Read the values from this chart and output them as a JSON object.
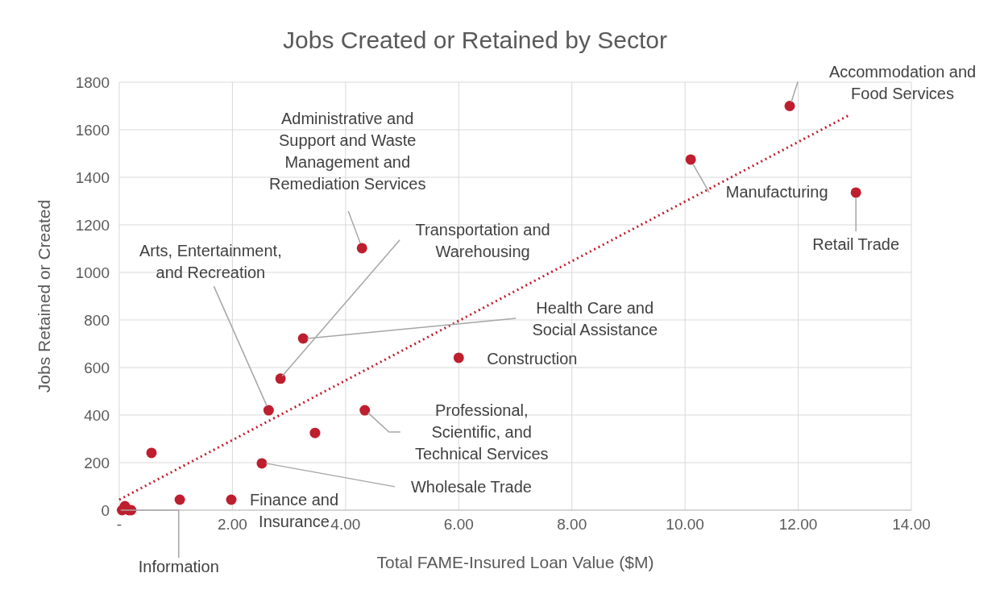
{
  "chart_data": {
    "type": "scatter",
    "title": "Jobs Created or Retained by Sector",
    "xlabel": "Total FAME-Insured Loan Value ($M)",
    "ylabel": "Jobs Retained or Created",
    "xlim": [
      0,
      14
    ],
    "ylim": [
      0,
      1800
    ],
    "xticks": [
      {
        "value": 0,
        "label": "-"
      },
      {
        "value": 2,
        "label": "2.00"
      },
      {
        "value": 4,
        "label": "4.00"
      },
      {
        "value": 6,
        "label": "6.00"
      },
      {
        "value": 8,
        "label": "8.00"
      },
      {
        "value": 10,
        "label": "10.00"
      },
      {
        "value": 12,
        "label": "12.00"
      },
      {
        "value": 14,
        "label": "14.00"
      }
    ],
    "yticks": [
      0,
      200,
      400,
      600,
      800,
      1000,
      1200,
      1400,
      1600,
      1800
    ],
    "grid": true,
    "series": [
      {
        "color": "#be1e2d",
        "marker": "circle",
        "x": [
          11.85,
          10.1,
          13.02,
          4.29,
          3.25,
          2.85,
          6.0,
          2.64,
          4.34,
          3.46,
          0.57,
          2.52,
          1.07,
          1.98,
          0.1,
          0.05,
          0.17,
          0.21
        ],
        "values": [
          1700,
          1475,
          1336,
          1102,
          722,
          553,
          641,
          420,
          420,
          325,
          241,
          197,
          44,
          44,
          17,
          0,
          0,
          0
        ]
      },
      {
        "type": "line",
        "color": "#be1e2d",
        "marker": "none",
        "line_style": "dotted",
        "x": [
          0,
          12.92
        ],
        "values": [
          44,
          1664
        ]
      }
    ],
    "annotations": [
      {
        "text": "Accommodation and Food Services",
        "x": 11.85,
        "y": 1700
      },
      {
        "text": "Manufacturing",
        "x": 10.1,
        "y": 1475
      },
      {
        "text": "Retail Trade",
        "x": 13.02,
        "y": 1336
      },
      {
        "text": "Administrative and Support and Waste Management and Remediation Services",
        "x": 4.29,
        "y": 1102
      },
      {
        "text": "Transportation and Warehousing",
        "x": 2.85,
        "y": 553
      },
      {
        "text": "Health Care and Social Assistance",
        "x": 3.25,
        "y": 722
      },
      {
        "text": "Arts, Entertainment, and Recreation",
        "x": 2.64,
        "y": 420
      },
      {
        "text": "Construction",
        "x": 6.0,
        "y": 641
      },
      {
        "text": "Professional, Scientific, and Technical Services",
        "x": 4.34,
        "y": 420
      },
      {
        "text": "Wholesale Trade",
        "x": 2.52,
        "y": 197
      },
      {
        "text": "Finance and Insurance",
        "x": 1.98,
        "y": 44
      },
      {
        "text": "Information",
        "x": 0.21,
        "y": 0
      }
    ]
  }
}
